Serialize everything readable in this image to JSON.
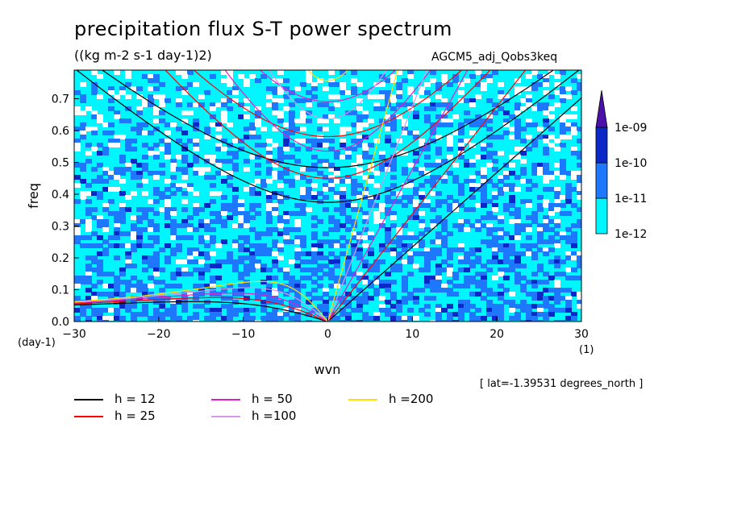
{
  "title": "precipitation flux S-T power spectrum",
  "units": "((kg m-2 s-1 day-1)2)",
  "model": "AGCM5_adj_Qobs3keq",
  "lat_label": "[ lat=-1.39531 degrees_north ]",
  "colorbar": {
    "levels": [
      "1e-12",
      "1e-11",
      "1e-10",
      "1e-09"
    ],
    "colors": [
      "#00f6ff",
      "#1e78ff",
      "#0a28c8",
      "#4a10a8"
    ]
  },
  "legend": [
    {
      "label": "h = 12",
      "color": "#000000"
    },
    {
      "label": "h = 25",
      "color": "#ff0000"
    },
    {
      "label": "h = 50",
      "color": "#e01ec8"
    },
    {
      "label": "h =100",
      "color": "#d898e8"
    },
    {
      "label": "h =200",
      "color": "#ffe000"
    }
  ],
  "chart_data": {
    "type": "heatmap",
    "title": "precipitation flux S-T power spectrum",
    "xlabel": "wvn",
    "ylabel": "freq",
    "x_unit": "(1)",
    "y_unit": "(day-1)",
    "xlim": [
      -30,
      30
    ],
    "ylim": [
      0,
      0.79
    ],
    "x_ticks": [
      -30,
      -20,
      -10,
      0,
      10,
      20,
      30
    ],
    "x_tick_labels": [
      "-30",
      "-20",
      "-10",
      "0",
      "10",
      "20",
      "30"
    ],
    "y_ticks": [
      0,
      0.1,
      0.2,
      0.3,
      0.4,
      0.5,
      0.6,
      0.7
    ],
    "y_tick_labels": [
      "0.0",
      "0.1",
      "0.2",
      "0.3",
      "0.4",
      "0.5",
      "0.6",
      "0.7"
    ],
    "contour_levels": [
      1e-12,
      1e-11,
      1e-10,
      1e-09
    ],
    "dispersion_curves_equivalent_depth_m": [
      12,
      25,
      50,
      100,
      200
    ]
  }
}
